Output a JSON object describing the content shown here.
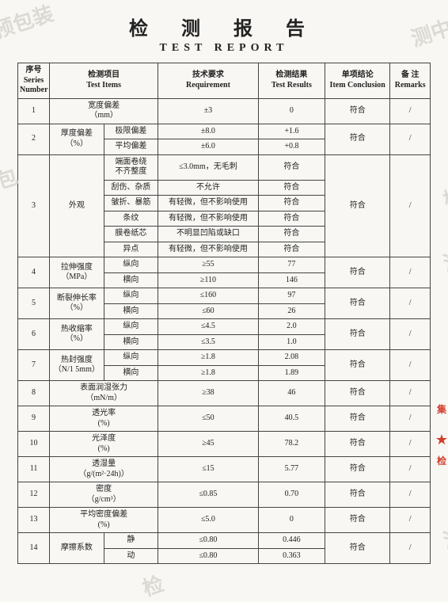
{
  "title_cn": "检 测 报 告",
  "title_en": "TEST  REPORT",
  "header": {
    "series_number_cn": "序号",
    "series_number_en": "Series Number",
    "test_items_cn": "检测项目",
    "test_items_en": "Test Items",
    "requirement_cn": "技术要求",
    "requirement_en": "Requirement",
    "test_results_cn": "检测结果",
    "test_results_en": "Test Results",
    "conclusion_cn": "单项结论",
    "conclusion_en": "Item Conclusion",
    "remarks_cn": "备 注",
    "remarks_en": "Remarks"
  },
  "tokens": {
    "pass": "符合",
    "slash": "/"
  },
  "rows": {
    "r1": {
      "num": "1",
      "item": "宽度偏差\n（mm）",
      "req": "±3",
      "res": "0"
    },
    "r2": {
      "num": "2",
      "item": "厚度偏差\n（%）",
      "sub1": "极限偏差",
      "req1": "±8.0",
      "res1": "+1.6",
      "sub2": "平均偏差",
      "req2": "±6.0",
      "res2": "+0.8"
    },
    "r3": {
      "num": "3",
      "item": "外观",
      "sub1": "端面卷绕\n不齐整度",
      "req1": "≤3.0mm，无毛刺",
      "res1": "符合",
      "sub2": "刮伤、杂质",
      "req2": "不允许",
      "res2": "符合",
      "sub3": "皱折、暴筋",
      "req3": "有轻微，但不影响使用",
      "res3": "符合",
      "sub4": "条纹",
      "req4": "有轻微，但不影响使用",
      "res4": "符合",
      "sub5": "膜卷纸芯",
      "req5": "不明显凹陷或缺口",
      "res5": "符合",
      "sub6": "异点",
      "req6": "有轻微，但不影响使用",
      "res6": "符合"
    },
    "r4": {
      "num": "4",
      "item": "拉伸强度\n（MPa）",
      "sub1": "纵向",
      "req1": "≥55",
      "res1": "77",
      "sub2": "横向",
      "req2": "≥110",
      "res2": "146"
    },
    "r5": {
      "num": "5",
      "item": "断裂伸长率\n（%）",
      "sub1": "纵向",
      "req1": "≤160",
      "res1": "97",
      "sub2": "横向",
      "req2": "≤60",
      "res2": "26"
    },
    "r6": {
      "num": "6",
      "item": "热收缩率\n（%）",
      "sub1": "纵向",
      "req1": "≤4.5",
      "res1": "2.0",
      "sub2": "横向",
      "req2": "≤3.5",
      "res2": "1.0"
    },
    "r7": {
      "num": "7",
      "item": "热封强度\n（N/1 5mm）",
      "sub1": "纵向",
      "req1": "≥1.8",
      "res1": "2.08",
      "sub2": "横向",
      "req2": "≥1.8",
      "res2": "1.89"
    },
    "r8": {
      "num": "8",
      "item": "表面润湿张力\n（mN/m）",
      "req": "≥38",
      "res": "46"
    },
    "r9": {
      "num": "9",
      "item": "透光率\n(%)",
      "req": "≤50",
      "res": "40.5"
    },
    "r10": {
      "num": "10",
      "item": "光泽度\n(%)",
      "req": "≥45",
      "res": "78.2"
    },
    "r11": {
      "num": "11",
      "item": "透湿量\n（g/(m²·24h)）",
      "req": "≤15",
      "res": "5.77"
    },
    "r12": {
      "num": "12",
      "item": "密度\n（g/cm³）",
      "req": "≤0.85",
      "res": "0.70"
    },
    "r13": {
      "num": "13",
      "item": "平均密度偏差\n(%)",
      "req": "≤5.0",
      "res": "0"
    },
    "r14": {
      "num": "14",
      "item": "摩擦系数",
      "sub1": "静",
      "req1": "≤0.80",
      "res1": "0.446",
      "sub2": "动",
      "req2": "≤0.80",
      "res2": "0.363"
    }
  },
  "watermarks": {
    "w1": "预包装",
    "w2": "测中心",
    "w3": "预包",
    "w4": "检",
    "w5": "浙",
    "w6": "浙",
    "w7": "检"
  },
  "stamp": {
    "c1": "集",
    "star": "★",
    "c2": "检"
  },
  "style": {
    "background": "#f8f7f3",
    "border_color": "#444444",
    "text_color": "#222222",
    "watermark_color": "#dcdad3",
    "stamp_color": "#d23c2b",
    "title_fontsize_cn": 24,
    "title_fontsize_en": 14,
    "body_fontsize": 10
  }
}
